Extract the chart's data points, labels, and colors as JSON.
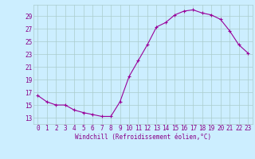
{
  "x": [
    0,
    1,
    2,
    3,
    4,
    5,
    6,
    7,
    8,
    9,
    10,
    11,
    12,
    13,
    14,
    15,
    16,
    17,
    18,
    19,
    20,
    21,
    22,
    23
  ],
  "y": [
    16.5,
    15.5,
    15.0,
    15.0,
    14.2,
    13.8,
    13.5,
    13.2,
    13.2,
    15.5,
    19.5,
    22.0,
    24.5,
    27.3,
    28.0,
    29.2,
    29.8,
    30.0,
    29.5,
    29.2,
    28.5,
    26.7,
    24.5,
    23.2
  ],
  "line_color": "#990099",
  "marker": "+",
  "marker_size": 3,
  "bg_color": "#cceeff",
  "grid_color": "#aacccc",
  "xlabel": "Windchill (Refroidissement éolien,°C)",
  "yticks": [
    13,
    15,
    17,
    19,
    21,
    23,
    25,
    27,
    29
  ],
  "xticks": [
    0,
    1,
    2,
    3,
    4,
    5,
    6,
    7,
    8,
    9,
    10,
    11,
    12,
    13,
    14,
    15,
    16,
    17,
    18,
    19,
    20,
    21,
    22,
    23
  ],
  "xlim": [
    -0.5,
    23.5
  ],
  "ylim": [
    12.0,
    30.8
  ],
  "xlabel_fontsize": 5.5,
  "tick_fontsize": 5.5,
  "tick_color": "#880088",
  "lw": 0.8
}
